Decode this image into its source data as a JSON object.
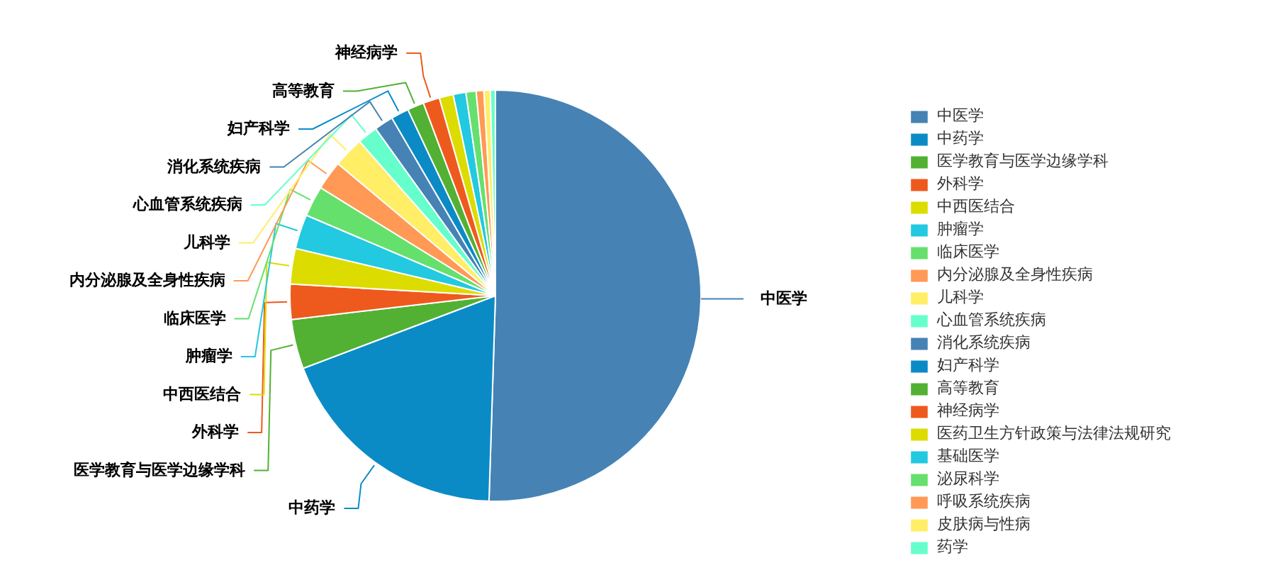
{
  "chart_data": {
    "type": "pie",
    "categories": [
      "中医学",
      "中药学",
      "医学教育与医学边缘学科",
      "外科学",
      "中西医结合",
      "肿瘤学",
      "临床医学",
      "内分泌腺及全身性疾病",
      "儿科学",
      "心血管系统疾病",
      "消化系统疾病",
      "妇产科学",
      "高等教育",
      "神经病学",
      "医药卫生方针政策与法律法规研究",
      "基础医学",
      "泌尿科学",
      "呼吸系统疾病",
      "皮肤病与性病",
      "药学"
    ],
    "values": [
      50.5,
      18.75,
      3.9,
      2.75,
      2.8,
      2.7,
      2.4,
      2.3,
      2.4,
      1.6,
      1.5,
      1.4,
      1.3,
      1.3,
      1.1,
      1.0,
      0.8,
      0.6,
      0.5,
      0.4
    ],
    "colors": [
      "#4682b4",
      "#0b8bc6",
      "#52b133",
      "#ee5a1d",
      "#dcdc00",
      "#22c9e0",
      "#66e06c",
      "#ff9955",
      "#ffee66",
      "#66ffcc",
      "#4682b4",
      "#0b8bc6",
      "#52b133",
      "#ee5a1d",
      "#dcdc00",
      "#22c9e0",
      "#66e06c",
      "#ff9955",
      "#ffee66",
      "#66ffcc"
    ],
    "legend": "right"
  }
}
